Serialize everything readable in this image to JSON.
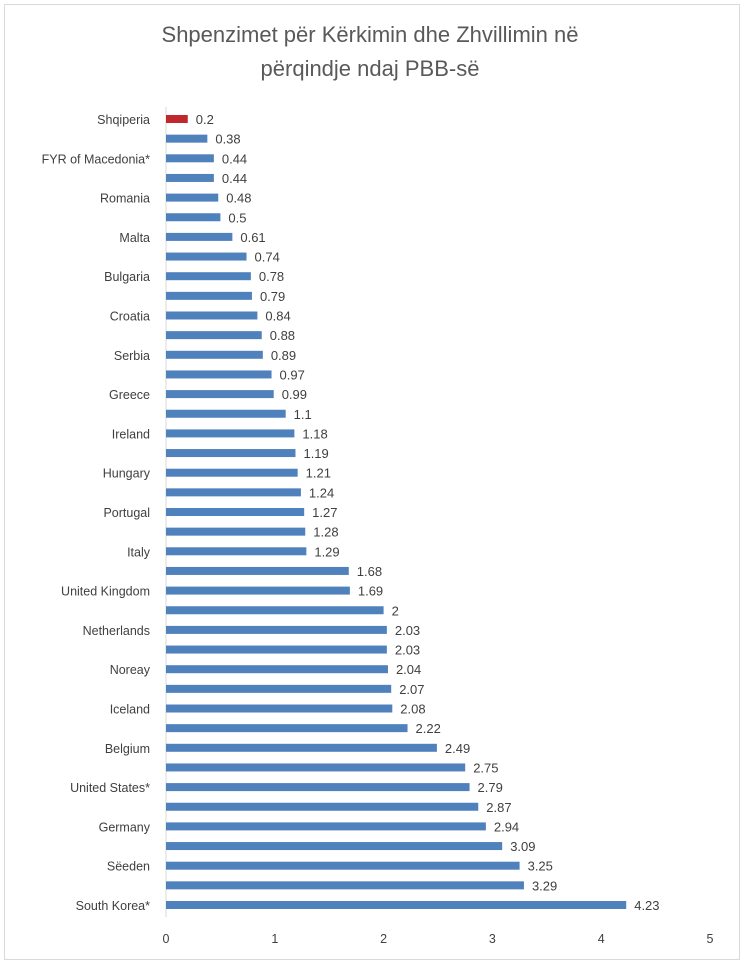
{
  "chart_data": {
    "type": "bar",
    "orientation": "horizontal",
    "title_lines": [
      "Shpenzimet për Kërkimin dhe Zhvillimin në",
      "përqindje ndaj PBB-së"
    ],
    "categories": [
      "Shqiperia",
      "",
      "FYR of Macedonia*",
      "",
      "Romania",
      "",
      "Malta",
      "",
      "Bulgaria",
      "",
      "Croatia",
      "",
      "Serbia",
      "",
      "Greece",
      "",
      "Ireland",
      "",
      "Hungary",
      "",
      "Portugal",
      "",
      "Italy",
      "",
      "United Kingdom",
      "",
      "Netherlands",
      "",
      "Noreay",
      "",
      "Iceland",
      "",
      "Belgium",
      "",
      "United States*",
      "",
      "Germany",
      "",
      "Sëeden",
      "",
      "South Korea*"
    ],
    "values": [
      0.2,
      0.38,
      0.44,
      0.44,
      0.48,
      0.5,
      0.61,
      0.74,
      0.78,
      0.79,
      0.84,
      0.88,
      0.89,
      0.97,
      0.99,
      1.1,
      1.18,
      1.19,
      1.21,
      1.24,
      1.27,
      1.28,
      1.29,
      1.68,
      1.69,
      2,
      2.03,
      2.03,
      2.04,
      2.07,
      2.08,
      2.22,
      2.49,
      2.75,
      2.79,
      2.87,
      2.94,
      3.09,
      3.25,
      3.29,
      4.23
    ],
    "highlight_index": 0,
    "xlim": [
      0,
      5
    ],
    "xticks": [
      "0",
      "1",
      "2",
      "3",
      "4",
      "5"
    ],
    "grid": false,
    "xlabel": "",
    "ylabel": "",
    "colors": {
      "bar": "#4f81bd",
      "highlight": "#c0282d",
      "text": "#595959"
    }
  }
}
